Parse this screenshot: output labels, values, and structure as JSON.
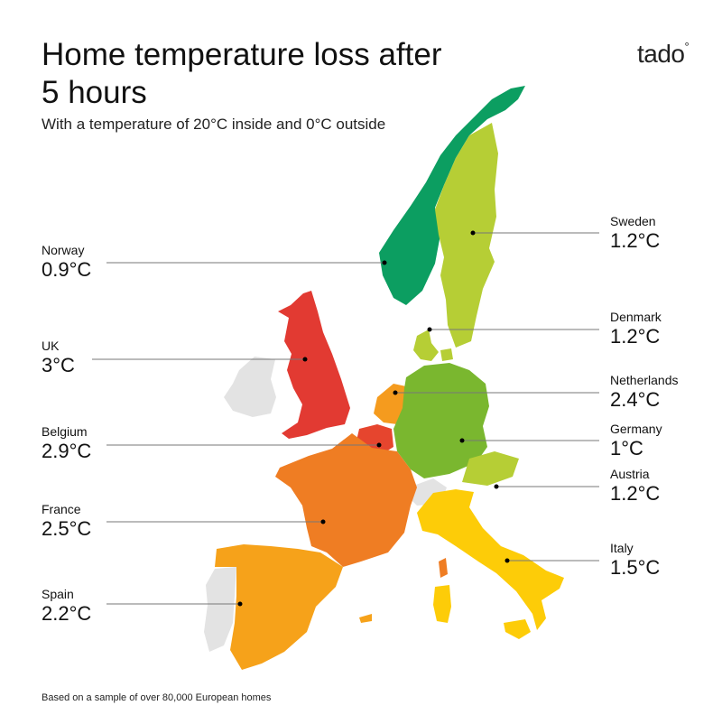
{
  "title": "Home temperature loss after 5 hours",
  "subtitle": "With a temperature of 20°C inside and 0°C outside",
  "logo": "tado",
  "footnote": "Based on a sample of over 80,000 European homes",
  "colors": {
    "norway": "#0c9e61",
    "sweden": "#b6ce35",
    "denmark": "#b6ce35",
    "germany": "#7ab72f",
    "austria": "#b6ce35",
    "netherlands": "#f59b1e",
    "belgium": "#e6452e",
    "uk": "#e23a32",
    "france": "#ef7d23",
    "spain": "#f6a21a",
    "italy": "#fdcc08",
    "other": "#e3e3e3"
  },
  "countries": [
    {
      "name": "Norway",
      "value": "0.9°C"
    },
    {
      "name": "UK",
      "value": "3°C"
    },
    {
      "name": "Belgium",
      "value": "2.9°C"
    },
    {
      "name": "France",
      "value": "2.5°C"
    },
    {
      "name": "Spain",
      "value": "2.2°C"
    },
    {
      "name": "Sweden",
      "value": "1.2°C"
    },
    {
      "name": "Denmark",
      "value": "1.2°C"
    },
    {
      "name": "Netherlands",
      "value": "2.4°C"
    },
    {
      "name": "Germany",
      "value": "1°C"
    },
    {
      "name": "Austria",
      "value": "1.2°C"
    },
    {
      "name": "Italy",
      "value": "1.5°C"
    }
  ]
}
